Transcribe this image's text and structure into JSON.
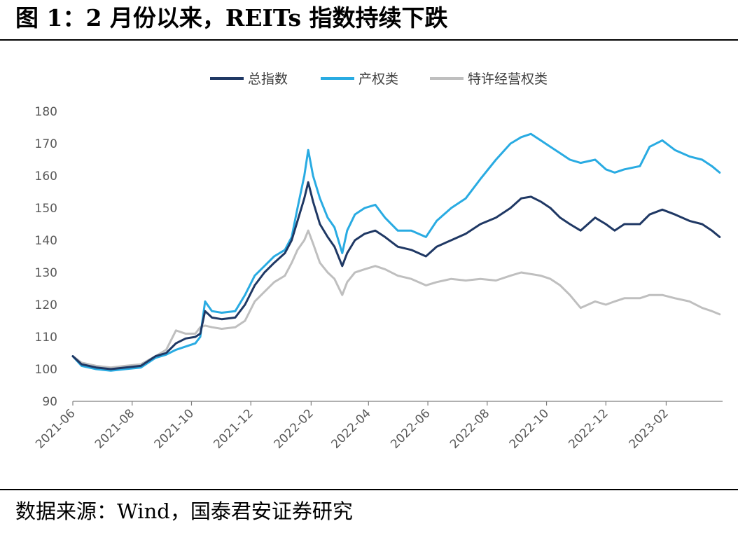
{
  "figure": {
    "title": "图 1：2 月份以来，REITs 指数持续下跌",
    "source": "数据来源：Wind，国泰君安证券研究"
  },
  "chart_data": {
    "type": "line",
    "title": "图 1：2 月份以来，REITs 指数持续下跌",
    "xlabel": "",
    "ylabel": "",
    "ylim": [
      90,
      180
    ],
    "yticks": [
      90,
      100,
      110,
      120,
      130,
      140,
      150,
      160,
      170,
      180
    ],
    "xlim": [
      "2021-06-01",
      "2023-03-31"
    ],
    "xticks": [
      "2021-06",
      "2021-08",
      "2021-10",
      "2021-12",
      "2022-02",
      "2022-04",
      "2022-06",
      "2022-08",
      "2022-10",
      "2022-12",
      "2023-02"
    ],
    "grid": false,
    "legend_position": "top",
    "series": [
      {
        "name": "总指数",
        "color": "#1f3864",
        "points": [
          [
            "2021-06-01",
            104
          ],
          [
            "2021-06-10",
            101.5
          ],
          [
            "2021-06-25",
            100.5
          ],
          [
            "2021-07-10",
            100
          ],
          [
            "2021-07-25",
            100.5
          ],
          [
            "2021-08-10",
            101
          ],
          [
            "2021-08-25",
            104
          ],
          [
            "2021-09-05",
            105
          ],
          [
            "2021-09-15",
            108
          ],
          [
            "2021-09-25",
            109.5
          ],
          [
            "2021-10-05",
            110
          ],
          [
            "2021-10-10",
            111
          ],
          [
            "2021-10-15",
            118
          ],
          [
            "2021-10-22",
            116
          ],
          [
            "2021-11-01",
            115.5
          ],
          [
            "2021-11-15",
            116
          ],
          [
            "2021-11-25",
            120
          ],
          [
            "2021-12-05",
            126
          ],
          [
            "2021-12-15",
            130
          ],
          [
            "2021-12-25",
            133
          ],
          [
            "2022-01-05",
            136
          ],
          [
            "2022-01-12",
            140
          ],
          [
            "2022-01-18",
            146
          ],
          [
            "2022-01-25",
            153
          ],
          [
            "2022-01-29",
            158
          ],
          [
            "2022-02-03",
            152
          ],
          [
            "2022-02-10",
            145
          ],
          [
            "2022-02-18",
            141
          ],
          [
            "2022-02-25",
            138
          ],
          [
            "2022-03-05",
            132
          ],
          [
            "2022-03-10",
            136
          ],
          [
            "2022-03-18",
            140
          ],
          [
            "2022-03-28",
            142
          ],
          [
            "2022-04-08",
            143
          ],
          [
            "2022-04-18",
            141
          ],
          [
            "2022-05-01",
            138
          ],
          [
            "2022-05-15",
            137
          ],
          [
            "2022-05-30",
            135
          ],
          [
            "2022-06-10",
            138
          ],
          [
            "2022-06-25",
            140
          ],
          [
            "2022-07-10",
            142
          ],
          [
            "2022-07-25",
            145
          ],
          [
            "2022-08-10",
            147
          ],
          [
            "2022-08-25",
            150
          ],
          [
            "2022-09-05",
            153
          ],
          [
            "2022-09-15",
            153.5
          ],
          [
            "2022-09-25",
            152
          ],
          [
            "2022-10-05",
            150
          ],
          [
            "2022-10-15",
            147
          ],
          [
            "2022-10-25",
            145
          ],
          [
            "2022-11-05",
            143
          ],
          [
            "2022-11-20",
            147
          ],
          [
            "2022-12-01",
            145
          ],
          [
            "2022-12-10",
            143
          ],
          [
            "2022-12-20",
            145
          ],
          [
            "2023-01-05",
            145
          ],
          [
            "2023-01-15",
            148
          ],
          [
            "2023-01-28",
            149.5
          ],
          [
            "2023-02-10",
            148
          ],
          [
            "2023-02-25",
            146
          ],
          [
            "2023-03-10",
            145
          ],
          [
            "2023-03-20",
            143
          ],
          [
            "2023-03-28",
            141
          ]
        ]
      },
      {
        "name": "产权类",
        "color": "#29abe2",
        "points": [
          [
            "2021-06-01",
            104
          ],
          [
            "2021-06-10",
            101
          ],
          [
            "2021-06-25",
            100
          ],
          [
            "2021-07-10",
            99.5
          ],
          [
            "2021-07-25",
            100
          ],
          [
            "2021-08-10",
            100.5
          ],
          [
            "2021-08-25",
            103.5
          ],
          [
            "2021-09-05",
            104.5
          ],
          [
            "2021-09-15",
            106
          ],
          [
            "2021-09-25",
            107
          ],
          [
            "2021-10-05",
            108
          ],
          [
            "2021-10-10",
            110
          ],
          [
            "2021-10-15",
            121
          ],
          [
            "2021-10-22",
            118
          ],
          [
            "2021-11-01",
            117.5
          ],
          [
            "2021-11-15",
            118
          ],
          [
            "2021-11-25",
            123
          ],
          [
            "2021-12-05",
            129
          ],
          [
            "2021-12-15",
            132
          ],
          [
            "2021-12-25",
            135
          ],
          [
            "2022-01-05",
            137
          ],
          [
            "2022-01-12",
            141
          ],
          [
            "2022-01-18",
            150
          ],
          [
            "2022-01-25",
            160
          ],
          [
            "2022-01-29",
            168
          ],
          [
            "2022-02-03",
            160
          ],
          [
            "2022-02-10",
            153
          ],
          [
            "2022-02-18",
            147
          ],
          [
            "2022-02-25",
            144
          ],
          [
            "2022-03-05",
            136
          ],
          [
            "2022-03-10",
            143
          ],
          [
            "2022-03-18",
            148
          ],
          [
            "2022-03-28",
            150
          ],
          [
            "2022-04-08",
            151
          ],
          [
            "2022-04-18",
            147
          ],
          [
            "2022-05-01",
            143
          ],
          [
            "2022-05-15",
            143
          ],
          [
            "2022-05-30",
            141
          ],
          [
            "2022-06-10",
            146
          ],
          [
            "2022-06-25",
            150
          ],
          [
            "2022-07-10",
            153
          ],
          [
            "2022-07-25",
            159
          ],
          [
            "2022-08-10",
            165
          ],
          [
            "2022-08-25",
            170
          ],
          [
            "2022-09-05",
            172
          ],
          [
            "2022-09-15",
            173
          ],
          [
            "2022-09-25",
            171
          ],
          [
            "2022-10-05",
            169
          ],
          [
            "2022-10-15",
            167
          ],
          [
            "2022-10-25",
            165
          ],
          [
            "2022-11-05",
            164
          ],
          [
            "2022-11-20",
            165
          ],
          [
            "2022-12-01",
            162
          ],
          [
            "2022-12-10",
            161
          ],
          [
            "2022-12-20",
            162
          ],
          [
            "2023-01-05",
            163
          ],
          [
            "2023-01-15",
            169
          ],
          [
            "2023-01-28",
            171
          ],
          [
            "2023-02-10",
            168
          ],
          [
            "2023-02-25",
            166
          ],
          [
            "2023-03-10",
            165
          ],
          [
            "2023-03-20",
            163
          ],
          [
            "2023-03-28",
            161
          ]
        ]
      },
      {
        "name": "特许经营权类",
        "color": "#bfbfbf",
        "points": [
          [
            "2021-06-01",
            104
          ],
          [
            "2021-06-10",
            102
          ],
          [
            "2021-06-25",
            101
          ],
          [
            "2021-07-10",
            100.5
          ],
          [
            "2021-07-25",
            101
          ],
          [
            "2021-08-10",
            101.5
          ],
          [
            "2021-08-25",
            104
          ],
          [
            "2021-09-05",
            106
          ],
          [
            "2021-09-15",
            112
          ],
          [
            "2021-09-25",
            111
          ],
          [
            "2021-10-05",
            111
          ],
          [
            "2021-10-10",
            113
          ],
          [
            "2021-10-15",
            113.5
          ],
          [
            "2021-10-22",
            113
          ],
          [
            "2021-11-01",
            112.5
          ],
          [
            "2021-11-15",
            113
          ],
          [
            "2021-11-25",
            115
          ],
          [
            "2021-12-05",
            121
          ],
          [
            "2021-12-15",
            124
          ],
          [
            "2021-12-25",
            127
          ],
          [
            "2022-01-05",
            129
          ],
          [
            "2022-01-12",
            133
          ],
          [
            "2022-01-18",
            137
          ],
          [
            "2022-01-25",
            140
          ],
          [
            "2022-01-29",
            143
          ],
          [
            "2022-02-03",
            139
          ],
          [
            "2022-02-10",
            133
          ],
          [
            "2022-02-18",
            130
          ],
          [
            "2022-02-25",
            128
          ],
          [
            "2022-03-05",
            123
          ],
          [
            "2022-03-10",
            127
          ],
          [
            "2022-03-18",
            130
          ],
          [
            "2022-03-28",
            131
          ],
          [
            "2022-04-08",
            132
          ],
          [
            "2022-04-18",
            131
          ],
          [
            "2022-05-01",
            129
          ],
          [
            "2022-05-15",
            128
          ],
          [
            "2022-05-30",
            126
          ],
          [
            "2022-06-10",
            127
          ],
          [
            "2022-06-25",
            128
          ],
          [
            "2022-07-10",
            127.5
          ],
          [
            "2022-07-25",
            128
          ],
          [
            "2022-08-10",
            127.5
          ],
          [
            "2022-08-25",
            129
          ],
          [
            "2022-09-05",
            130
          ],
          [
            "2022-09-15",
            129.5
          ],
          [
            "2022-09-25",
            129
          ],
          [
            "2022-10-05",
            128
          ],
          [
            "2022-10-15",
            126
          ],
          [
            "2022-10-25",
            123
          ],
          [
            "2022-11-05",
            119
          ],
          [
            "2022-11-20",
            121
          ],
          [
            "2022-12-01",
            120
          ],
          [
            "2022-12-10",
            121
          ],
          [
            "2022-12-20",
            122
          ],
          [
            "2023-01-05",
            122
          ],
          [
            "2023-01-15",
            123
          ],
          [
            "2023-01-28",
            123
          ],
          [
            "2023-02-10",
            122
          ],
          [
            "2023-02-25",
            121
          ],
          [
            "2023-03-10",
            119
          ],
          [
            "2023-03-20",
            118
          ],
          [
            "2023-03-28",
            117
          ]
        ]
      }
    ]
  }
}
